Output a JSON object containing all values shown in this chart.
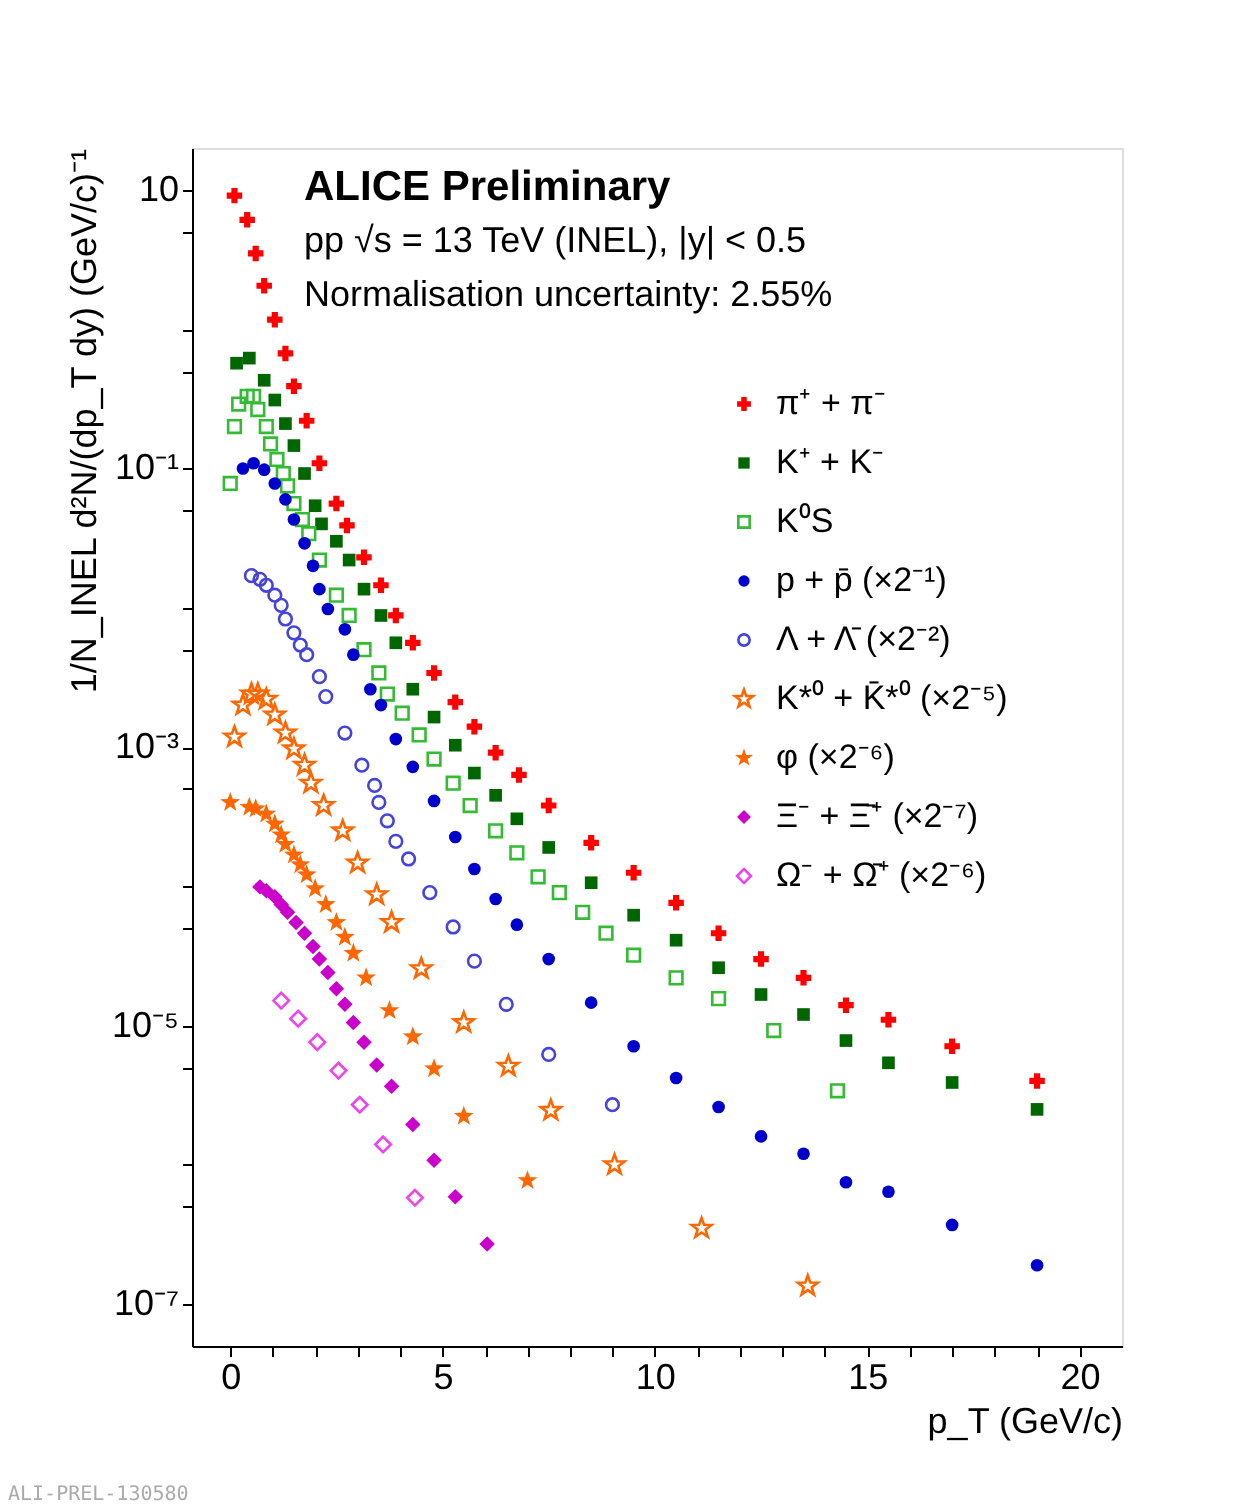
{
  "chart_data": {
    "type": "scatter",
    "xlabel": "p_T (GeV/c)",
    "ylabel": "1/N_INEL d²N/(dp_T dy) (GeV/c)⁻¹",
    "annotations": [
      "ALICE Preliminary",
      "pp √s = 13 TeV (INEL), |y| < 0.5",
      "Normalisation uncertainty: 2.55%",
      "ALI-PREL-130580"
    ],
    "log": "y",
    "grid": false,
    "legend": "top right",
    "xlim": [
      -0.9,
      21
    ],
    "ylim": [
      5e-08,
      20
    ],
    "xticks": [
      0,
      {
        "value": 1,
        "label": null
      },
      {
        "value": 2,
        "label": null
      },
      {
        "value": 3,
        "label": null
      },
      {
        "value": 4,
        "label": null
      },
      5,
      {
        "value": 6,
        "label": null
      },
      {
        "value": 7,
        "label": null
      },
      {
        "value": 8,
        "label": null
      },
      {
        "value": 9,
        "label": null
      },
      10,
      {
        "value": 11,
        "label": null
      },
      {
        "value": 12,
        "label": null
      },
      {
        "value": 13,
        "label": null
      },
      {
        "value": 14,
        "label": null
      },
      15,
      {
        "value": 16,
        "label": null
      },
      {
        "value": 17,
        "label": null
      },
      {
        "value": 18,
        "label": null
      },
      {
        "value": 19,
        "label": null
      },
      20
    ],
    "yticks": [
      10,
      {
        "value": 5,
        "label": null
      },
      {
        "value": 1,
        "label": null
      },
      {
        "value": 0.5,
        "label": null
      },
      {
        "value": 0.1,
        "label": "10⁻¹"
      },
      {
        "value": 0.05,
        "label": null
      },
      {
        "value": 0.01,
        "label": null
      },
      {
        "value": 0.005,
        "label": null
      },
      {
        "value": 0.001,
        "label": "10⁻³"
      },
      {
        "value": 0.0005,
        "label": null
      },
      {
        "value": 0.0001,
        "label": null
      },
      {
        "value": 5e-05,
        "label": null
      },
      {
        "value": 1e-05,
        "label": "10⁻⁵"
      },
      {
        "value": 5e-06,
        "label": null
      },
      {
        "value": 1e-06,
        "label": null
      },
      {
        "value": 5e-07,
        "label": null
      },
      {
        "value": 1e-07,
        "label": "10⁻⁷"
      }
    ],
    "series": [
      {
        "name": "π⁺ + π⁻",
        "color": "#ff0000",
        "marker": "cross",
        "x": [
          0.1,
          0.4,
          0.6,
          0.8,
          1.05,
          1.3,
          1.5,
          1.8,
          2.1,
          2.5,
          2.75,
          3.15,
          3.55,
          3.9,
          4.3,
          4.8,
          5.3,
          5.75,
          6.25,
          6.8,
          7.5,
          8.5,
          9.5,
          10.5,
          11.5,
          12.5,
          13.5,
          14.5,
          15.5,
          17,
          19
        ],
        "values": [
          9.1,
          6.1,
          3.5,
          2.05,
          1.17,
          0.67,
          0.39,
          0.22,
          0.109,
          0.056,
          0.039,
          0.023,
          0.0145,
          0.0088,
          0.0056,
          0.0034,
          0.0021,
          0.0014,
          0.00091,
          0.00063,
          0.00038,
          0.000205,
          0.000125,
          7.6e-05,
          4.6e-05,
          3e-05,
          2.2e-05,
          1.4e-05,
          1.1e-05,
          7.1e-06,
          4e-06
        ]
      },
      {
        "name": "K⁺ + K⁻",
        "color": "#006600",
        "marker": "square",
        "x": [
          0.15,
          0.45,
          0.8,
          1.05,
          1.3,
          1.5,
          1.75,
          2.0,
          2.15,
          2.5,
          2.8,
          3.15,
          3.55,
          3.9,
          4.3,
          4.8,
          5.3,
          5.75,
          6.25,
          6.75,
          7.5,
          8.5,
          9.5,
          10.5,
          11.5,
          12.5,
          13.5,
          14.5,
          15.5,
          17,
          19
        ],
        "values": [
          0.57,
          0.62,
          0.43,
          0.31,
          0.21,
          0.146,
          0.092,
          0.054,
          0.04,
          0.03,
          0.022,
          0.0136,
          0.0088,
          0.0056,
          0.0026,
          0.00164,
          0.00103,
          0.00065,
          0.00045,
          0.000305,
          0.00019,
          0.000106,
          6.2e-05,
          4.1e-05,
          2.6e-05,
          1.67e-05,
          1.2e-05,
          7.8e-06,
          5.4e-06,
          3.9e-06,
          2.5e-06
        ]
      },
      {
        "name": "K⁰S",
        "color": "#33bb33",
        "marker": "square-open",
        "x": [
          0.0,
          0.1,
          0.2,
          0.4,
          0.55,
          0.65,
          0.85,
          0.95,
          1.1,
          1.25,
          1.35,
          1.5,
          1.7,
          1.85,
          2.1,
          2.5,
          2.8,
          3.15,
          3.5,
          3.7,
          4.05,
          4.45,
          4.8,
          5.25,
          5.65,
          6.25,
          6.75,
          7.25,
          7.75,
          8.3,
          8.85,
          9.5,
          10.5,
          11.5,
          12.8,
          14.3
        ],
        "values": [
          0.078,
          0.2,
          0.29,
          0.33,
          0.33,
          0.265,
          0.2,
          0.15,
          0.116,
          0.092,
          0.075,
          0.056,
          0.043,
          0.034,
          0.022,
          0.0123,
          0.0088,
          0.005,
          0.0034,
          0.0024,
          0.00175,
          0.00122,
          0.00082,
          0.00055,
          0.00038,
          0.00025,
          0.000174,
          0.000117,
          9e-05,
          6.5e-05,
          4.6e-05,
          3.2e-05,
          2.2e-05,
          1.56e-05,
          9.2e-06,
          3.4e-06
        ]
      },
      {
        "name": "p + p̄ (×2⁻¹)",
        "color": "#0000cc",
        "marker": "circle",
        "x": [
          0.3,
          0.55,
          0.8,
          1.05,
          1.3,
          1.5,
          1.75,
          1.95,
          2.1,
          2.3,
          2.7,
          2.9,
          3.3,
          3.55,
          3.9,
          4.3,
          4.8,
          5.3,
          5.75,
          6.25,
          6.75,
          7.5,
          8.5,
          9.5,
          10.5,
          11.5,
          12.5,
          13.5,
          14.5,
          15.5,
          17,
          19
        ],
        "values": [
          0.1,
          0.109,
          0.098,
          0.078,
          0.06,
          0.043,
          0.029,
          0.02,
          0.0136,
          0.0098,
          0.007,
          0.0046,
          0.0026,
          0.002,
          0.00114,
          0.00072,
          0.00041,
          0.000226,
          0.000133,
          8.1e-05,
          5.3e-05,
          3e-05,
          1.46e-05,
          7.1e-06,
          4.2e-06,
          2.6e-06,
          1.6e-06,
          1.2e-06,
          7.5e-07,
          6.4e-07,
          3.7e-07,
          1.9e-07
        ]
      },
      {
        "name": "Λ + Λ̄ (×2⁻²)",
        "color": "#4444dd",
        "marker": "circle-open",
        "x": [
          0.5,
          0.7,
          0.85,
          1.05,
          1.2,
          1.3,
          1.5,
          1.65,
          1.8,
          2.1,
          2.25,
          2.7,
          3.1,
          3.4,
          3.5,
          3.7,
          3.9,
          4.2,
          4.7,
          5.25,
          5.75,
          6.5,
          7.5,
          9.0
        ],
        "values": [
          0.017,
          0.016,
          0.0145,
          0.0123,
          0.0104,
          0.0083,
          0.0066,
          0.0054,
          0.0046,
          0.0032,
          0.0023,
          0.00126,
          0.00074,
          0.00053,
          0.0004,
          0.000295,
          0.00021,
          0.000157,
          9e-05,
          5.1e-05,
          2.9e-05,
          1.42e-05,
          6.2e-06,
          2.7e-06
        ]
      },
      {
        "name": "K*⁰ + K̄*⁰ (×2⁻⁵)",
        "color": "#ff6600",
        "marker": "star-open",
        "x": [
          0.1,
          0.3,
          0.5,
          0.65,
          0.85,
          1.05,
          1.3,
          1.5,
          1.75,
          1.9,
          2.2,
          2.65,
          3.0,
          3.45,
          3.8,
          4.5,
          5.5,
          6.55,
          7.55,
          9.05,
          11.1,
          13.6
        ],
        "values": [
          0.00118,
          0.002,
          0.0024,
          0.0024,
          0.0022,
          0.0017,
          0.00126,
          0.00097,
          0.00074,
          0.00055,
          0.00038,
          0.00025,
          0.000147,
          8.7e-05,
          5.5e-05,
          2.56e-05,
          1.05e-05,
          5.1e-06,
          2.46e-06,
          1e-06,
          3.5e-07,
          1.35e-07
        ]
      },
      {
        "name": "φ (×2⁻⁶)",
        "color": "#ff6600",
        "marker": "star",
        "x": [
          0.0,
          0.45,
          0.6,
          0.85,
          1.05,
          1.2,
          1.3,
          1.5,
          1.65,
          1.8,
          2.0,
          2.25,
          2.5,
          2.7,
          2.9,
          3.2,
          3.75,
          4.3,
          4.8,
          5.5,
          7.0
        ],
        "values": [
          0.0004,
          0.00037,
          0.00036,
          0.00033,
          0.00028,
          0.000234,
          0.0002,
          0.000168,
          0.000143,
          0.000121,
          9.6e-05,
          7.4e-05,
          5.5e-05,
          4.3e-05,
          3.3e-05,
          2.2e-05,
          1.28e-05,
          8.3e-06,
          4.9e-06,
          2.23e-06,
          7.7e-07
        ]
      },
      {
        "name": "Ξ⁻ + Ξ̄⁺ (×2⁻⁷)",
        "color": "#cc00cc",
        "marker": "diamond",
        "x": [
          0.7,
          0.85,
          1.05,
          1.2,
          1.35,
          1.55,
          1.75,
          1.95,
          2.1,
          2.3,
          2.5,
          2.7,
          2.9,
          3.15,
          3.45,
          3.8,
          4.3,
          4.8,
          5.3,
          6.05
        ],
        "values": [
          9.9e-05,
          9.3e-05,
          8.4e-05,
          7.4e-05,
          6.5e-05,
          5.5e-05,
          4.6e-05,
          3.7e-05,
          3e-05,
          2.4e-05,
          1.84e-05,
          1.42e-05,
          1.05e-05,
          7.6e-06,
          5.2e-06,
          3.66e-06,
          1.95e-06,
          1.08e-06,
          5.9e-07,
          2.7e-07
        ]
      },
      {
        "name": "Ω⁻ + Ω̄⁺ (×2⁻⁶)",
        "color": "#ee44ee",
        "marker": "diamond-open",
        "x": [
          1.2,
          1.6,
          2.05,
          2.55,
          3.05,
          3.6,
          4.35
        ],
        "values": [
          1.51e-05,
          1.12e-05,
          7.6e-06,
          4.75e-06,
          2.7e-06,
          1.4e-06,
          5.8e-07
        ]
      }
    ]
  }
}
